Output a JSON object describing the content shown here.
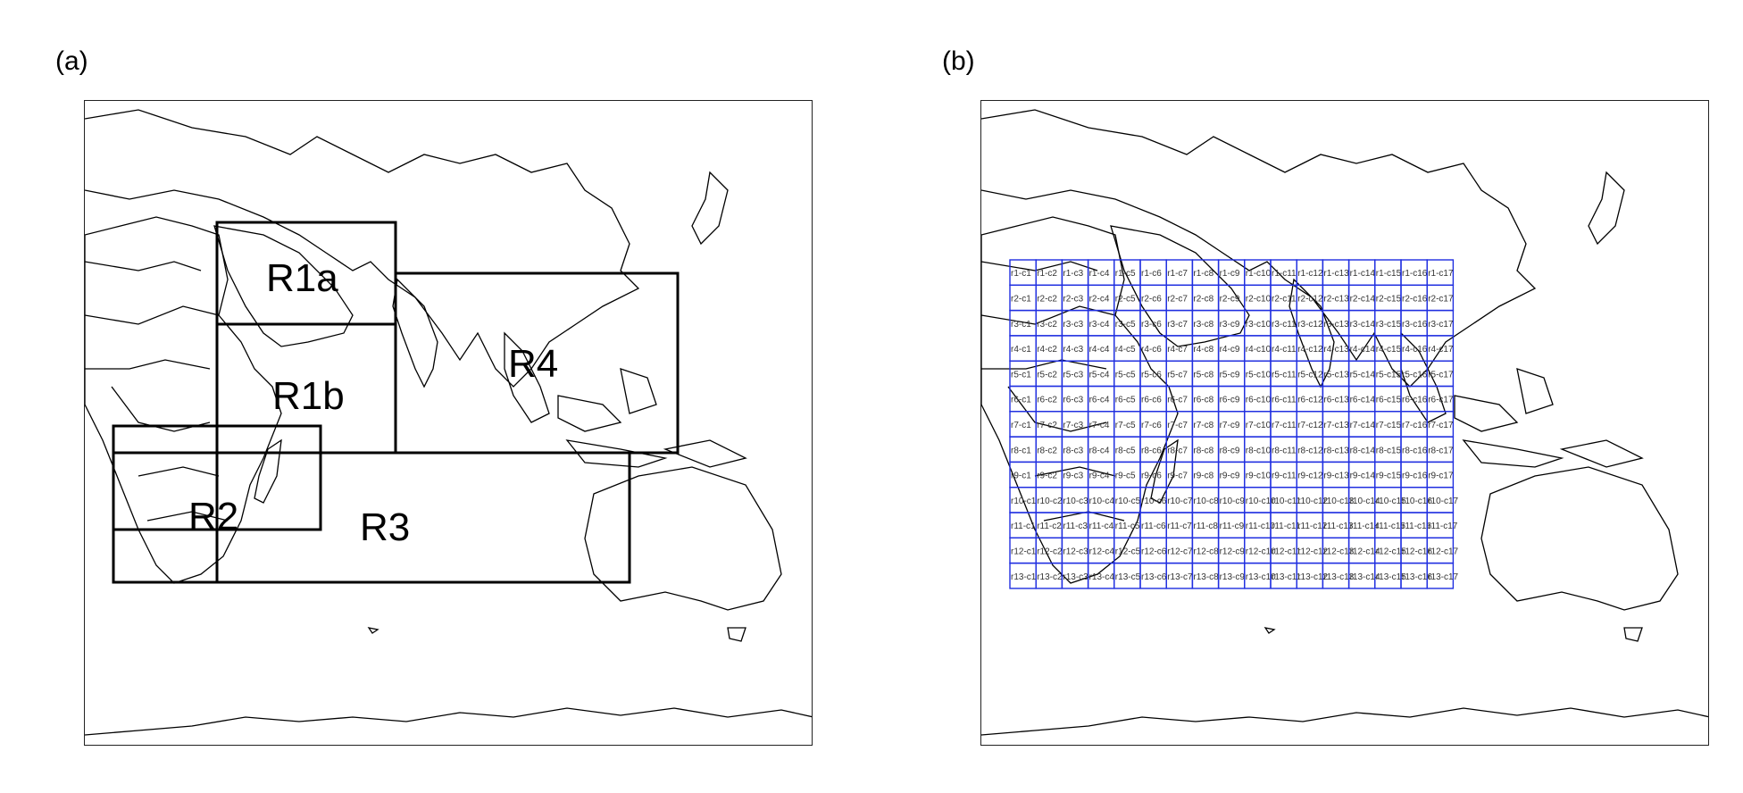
{
  "panels": {
    "a": {
      "label": "(a)"
    },
    "b": {
      "label": "(b)"
    }
  },
  "regions": [
    {
      "id": "R1a",
      "label": "R1a"
    },
    {
      "id": "R1b",
      "label": "R1b"
    },
    {
      "id": "R2",
      "label": "R2"
    },
    {
      "id": "R3",
      "label": "R3"
    },
    {
      "id": "R4",
      "label": "R4"
    }
  ],
  "grid": {
    "rows": 13,
    "cols": 17,
    "label_pattern": "r{row}-c{col}",
    "color": "#1f2ee0"
  },
  "colors": {
    "coastline": "#000000",
    "region_box": "#000000",
    "grid_cell": "#1f2ee0"
  }
}
